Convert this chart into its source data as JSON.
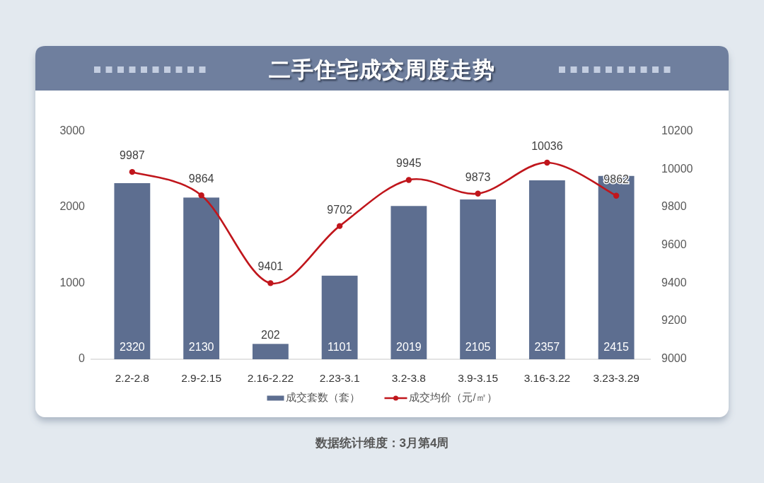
{
  "chart_data": {
    "type": "bar",
    "title": "二手住宅成交周度走势",
    "categories": [
      "2.2-2.8",
      "2.9-2.15",
      "2.16-2.22",
      "2.23-3.1",
      "3.2-3.8",
      "3.9-3.15",
      "3.16-3.22",
      "3.23-3.29"
    ],
    "series": [
      {
        "name": "成交套数（套）",
        "color": "#5d6e90",
        "values": [
          2320,
          2130,
          202,
          1101,
          2019,
          2105,
          2357,
          2415
        ]
      },
      {
        "name": "成交均价（元/㎡）",
        "type": "line",
        "axis": "y2",
        "marker": "circle",
        "color": "#c0161c",
        "values": [
          9987,
          9864,
          9401,
          9702,
          9945,
          9873,
          10036,
          9862
        ]
      }
    ],
    "ylim": [
      0,
      3000
    ],
    "yticks": [
      0,
      1000,
      2000,
      3000
    ],
    "y2lim": [
      9000,
      10200
    ],
    "y2ticks": [
      9000,
      9200,
      9400,
      9600,
      9800,
      10000,
      10200
    ],
    "data_labels": true,
    "legend": "bottom",
    "annotations": [
      "数据统计维度：3月第4周"
    ]
  }
}
